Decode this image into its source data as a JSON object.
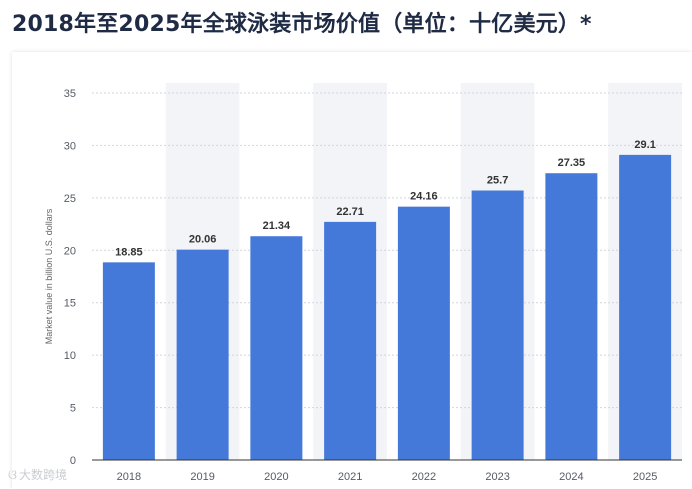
{
  "title": "2018年至2025年全球泳装市场价值（单位：十亿美元）*",
  "watermark": "大数跨境",
  "colors": {
    "bar": "#4479d9",
    "grid": "#cfd5df",
    "band": "#f3f4f7",
    "axis": "#333333"
  },
  "chart_data": {
    "type": "bar",
    "categories": [
      "2018",
      "2019",
      "2020",
      "2021",
      "2022",
      "2023",
      "2024",
      "2025"
    ],
    "values": [
      18.85,
      20.06,
      21.34,
      22.71,
      24.16,
      25.7,
      27.35,
      29.1
    ],
    "value_labels": [
      "18.85",
      "20.06",
      "21.34",
      "22.71",
      "24.16",
      "25.7",
      "27.35",
      "29.1"
    ],
    "ylabel": "Market value in billion U.S. dollars",
    "ylim": [
      0,
      35
    ],
    "yticks": [
      0,
      5,
      10,
      15,
      20,
      25,
      30,
      35
    ],
    "ytick_labels": [
      "0",
      "5",
      "10",
      "15",
      "20",
      "25",
      "30",
      "35"
    ],
    "grid": true
  }
}
